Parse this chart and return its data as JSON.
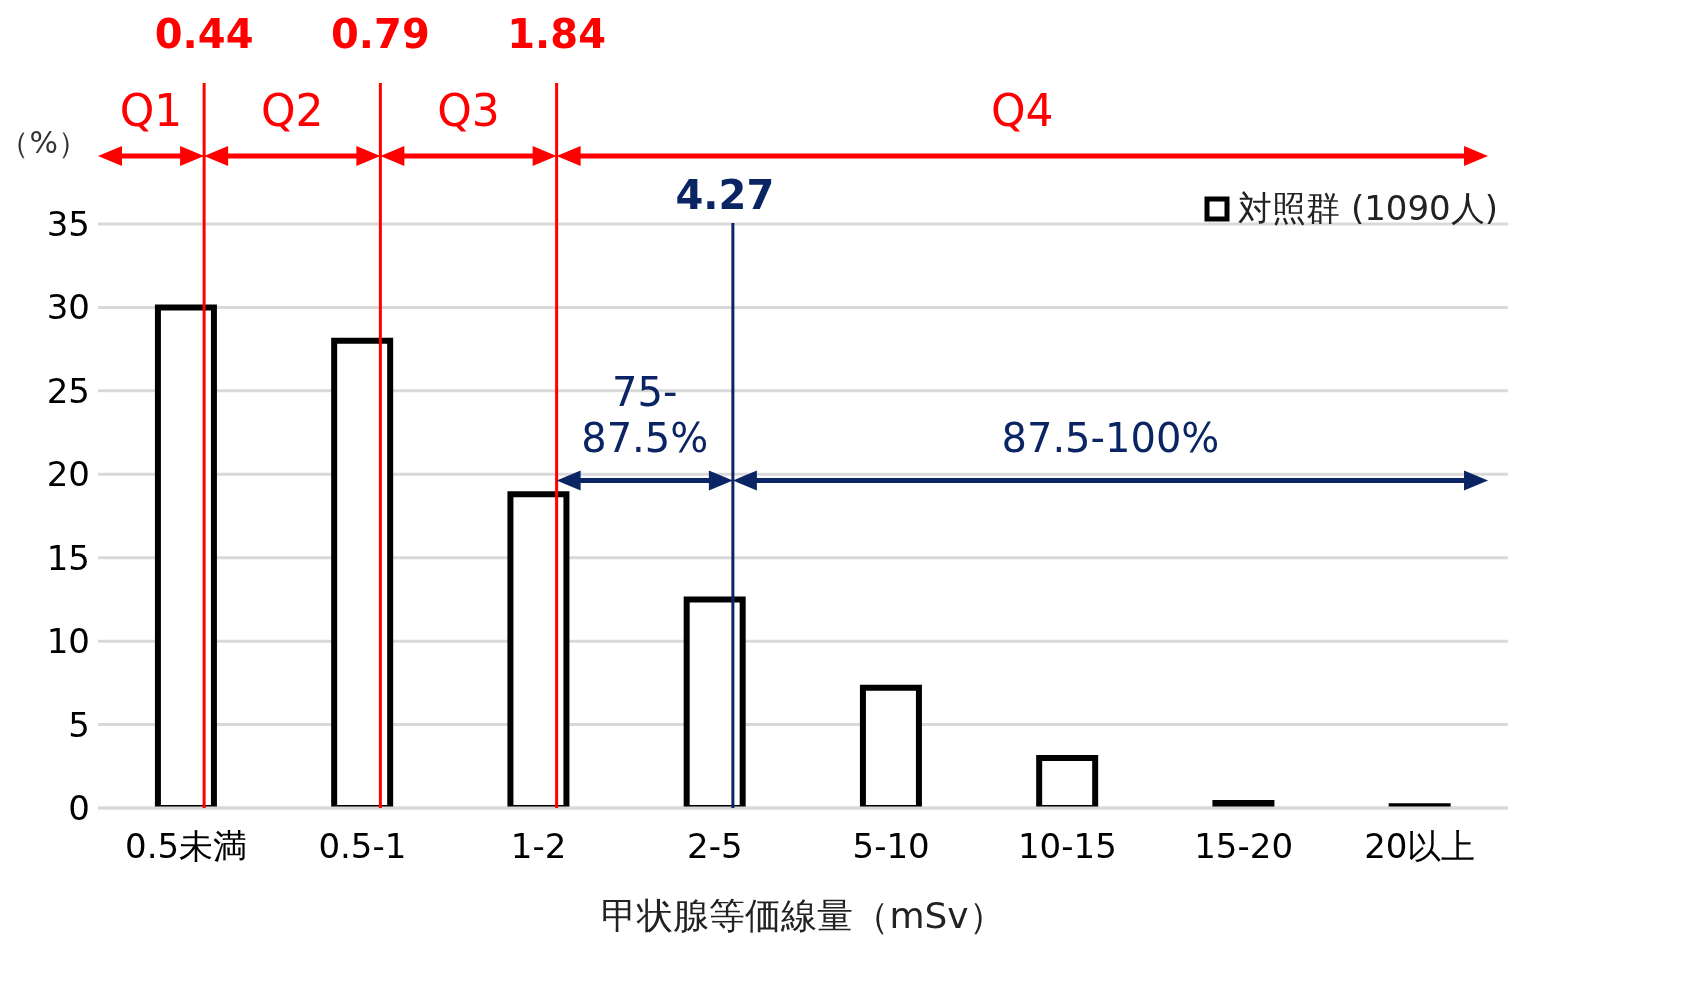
{
  "chart_data": {
    "type": "bar",
    "xlabel": "甲状腺等価線量（mSv）",
    "ylabel": "（%）",
    "categories": [
      "0.5未満",
      "0.5-1",
      "1-2",
      "2-5",
      "5-10",
      "10-15",
      "15-20",
      "20以上"
    ],
    "series": [
      {
        "name": "対照群 (1090人)",
        "color": "#000000",
        "values": [
          30,
          28,
          18.8,
          12.5,
          7.2,
          3,
          0.3,
          0.1
        ]
      }
    ],
    "ylim": [
      0,
      35
    ],
    "yticks": [
      0,
      5,
      10,
      15,
      20,
      25,
      30,
      35
    ],
    "grid": "y",
    "legend": "top right",
    "ref_lines": [
      {
        "axis": "x",
        "value": "0.5未満",
        "label": "0.44",
        "color": "#ff0000"
      },
      {
        "axis": "x",
        "value": "0.5-1",
        "label": "0.79",
        "color": "#ff0000"
      },
      {
        "axis": "x",
        "value": "1-2",
        "label": "1.84",
        "color": "#ff0000"
      },
      {
        "axis": "x",
        "value": "2-5",
        "label": "4.27",
        "color": "#0b2463"
      }
    ],
    "annotations": [
      "Q1",
      "Q2",
      "Q3",
      "Q4",
      "75-87.5%",
      "87.5-100%"
    ]
  }
}
